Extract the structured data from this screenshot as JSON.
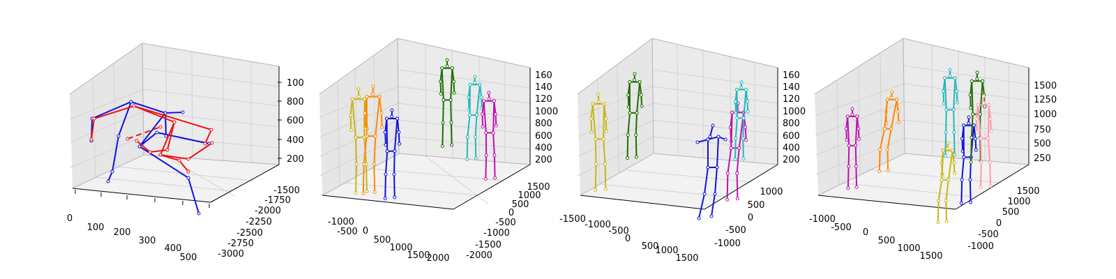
{
  "colors": {
    "pane_left": "#e6e6e6",
    "pane_right": "#ebebeb",
    "pane_floor": "#f2f2f2",
    "grid": "#d2d2d2",
    "edge": "#b3b3b3",
    "blue": "#1010e0",
    "red": "#ee1010",
    "yellow": "#c8b414",
    "orange": "#ff8800",
    "green": "#1a6e00",
    "cyan": "#22b8b8",
    "magenta": "#c010b0",
    "pink": "#ff9aa6"
  },
  "chart_data": [
    {
      "type": "scatter",
      "subtype": "3d-skeleton",
      "x_ticks": [
        "0",
        "100",
        "200",
        "300",
        "400",
        "500"
      ],
      "y_ticks": [
        "-3000",
        "-2750",
        "-2500",
        "-2250",
        "-2000",
        "-1750",
        "-1500"
      ],
      "z_ticks": [
        "200",
        "400",
        "600",
        "800",
        "100"
      ],
      "series": [
        {
          "color": "blue",
          "skeletons": 1,
          "note_dashed": false
        },
        {
          "color": "red",
          "skeletons": 1,
          "note_dashed": true
        }
      ]
    },
    {
      "type": "scatter",
      "subtype": "3d-skeleton",
      "x_ticks": [
        "-1000",
        "-500",
        "0",
        "500",
        "1000",
        "1500",
        "2000"
      ],
      "y_ticks": [
        "-2000",
        "-1500",
        "-1000",
        "-500",
        "0",
        "500",
        "1000",
        "1500"
      ],
      "z_ticks": [
        "200",
        "400",
        "600",
        "800",
        "1000",
        "120",
        "140",
        "160"
      ],
      "series": [
        {
          "color": "yellow"
        },
        {
          "color": "orange"
        },
        {
          "color": "blue"
        },
        {
          "color": "green"
        },
        {
          "color": "cyan"
        },
        {
          "color": "magenta"
        }
      ]
    },
    {
      "type": "scatter",
      "subtype": "3d-skeleton",
      "x_ticks": [
        "-1500",
        "-1000",
        "-500",
        "0",
        "500",
        "1000",
        "1500"
      ],
      "y_ticks": [
        "-1000",
        "-500",
        "0",
        "500",
        "1000"
      ],
      "z_ticks": [
        "200",
        "400",
        "600",
        "800",
        "1000",
        "120",
        "140",
        "160"
      ],
      "series": [
        {
          "color": "yellow"
        },
        {
          "color": "green"
        },
        {
          "color": "blue"
        },
        {
          "color": "magenta"
        },
        {
          "color": "cyan"
        }
      ]
    },
    {
      "type": "scatter",
      "subtype": "3d-skeleton",
      "x_ticks": [
        "-1000",
        "-500",
        "0",
        "500",
        "1000",
        "1500"
      ],
      "y_ticks": [
        "-1000",
        "-500",
        "0",
        "500",
        "1000",
        "1500"
      ],
      "z_ticks": [
        "250",
        "500",
        "750",
        "1000",
        "1250",
        "1500"
      ],
      "series": [
        {
          "color": "magenta"
        },
        {
          "color": "orange"
        },
        {
          "color": "cyan"
        },
        {
          "color": "yellow"
        },
        {
          "color": "blue"
        },
        {
          "color": "green"
        },
        {
          "color": "pink"
        }
      ]
    }
  ]
}
